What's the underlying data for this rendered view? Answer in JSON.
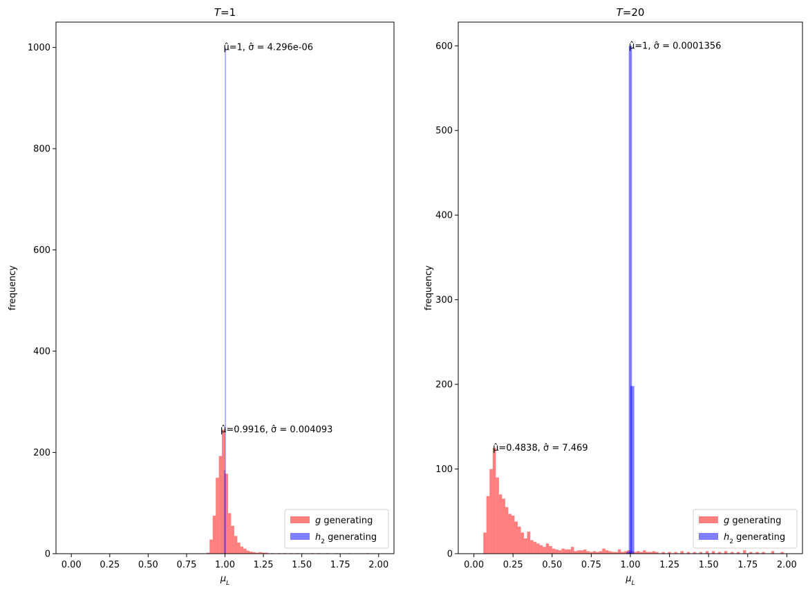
{
  "chart_data": [
    {
      "type": "bar",
      "title": "T=1",
      "xlabel": "μL",
      "ylabel": "frequency",
      "xlim": [
        -0.1,
        2.1
      ],
      "ylim": [
        0,
        1050
      ],
      "xticks": [
        0.0,
        0.25,
        0.5,
        0.75,
        1.0,
        1.25,
        1.5,
        1.75,
        2.0
      ],
      "xtick_labels": [
        "0.00",
        "0.25",
        "0.50",
        "0.75",
        "1.00",
        "1.25",
        "1.50",
        "1.75",
        "2.00"
      ],
      "yticks": [
        0,
        200,
        400,
        600,
        800,
        1000
      ],
      "ytick_labels": [
        "0",
        "200",
        "400",
        "600",
        "800",
        "1000"
      ],
      "legend": {
        "placement": "lower-right",
        "entries": [
          "g generating",
          "h2 generating"
        ]
      },
      "series": [
        {
          "name": "g generating",
          "color": "#ff0000",
          "opacity": 0.5,
          "bin_width": 0.02,
          "bins": [
            [
              0.88,
              2
            ],
            [
              0.9,
              28
            ],
            [
              0.92,
              75
            ],
            [
              0.94,
              150
            ],
            [
              0.96,
              193
            ],
            [
              0.98,
              245
            ],
            [
              1.0,
              158
            ],
            [
              1.02,
              80
            ],
            [
              1.04,
              55
            ],
            [
              1.06,
              35
            ],
            [
              1.08,
              22
            ],
            [
              1.1,
              14
            ],
            [
              1.12,
              10
            ],
            [
              1.14,
              6
            ],
            [
              1.16,
              4
            ],
            [
              1.18,
              3
            ],
            [
              1.2,
              2
            ],
            [
              1.22,
              3
            ],
            [
              1.24,
              2
            ],
            [
              1.26,
              2
            ],
            [
              1.3,
              1
            ],
            [
              1.34,
              1
            ],
            [
              1.38,
              1
            ],
            [
              1.42,
              1
            ],
            [
              1.46,
              1
            ],
            [
              1.5,
              1
            ],
            [
              1.56,
              1
            ],
            [
              1.6,
              1
            ],
            [
              1.66,
              1
            ],
            [
              1.72,
              1
            ],
            [
              1.8,
              1
            ],
            [
              1.92,
              1
            ]
          ]
        },
        {
          "name": "h2 generating",
          "color": "#0000ff",
          "opacity": 0.5,
          "bin_width": 0.005,
          "bins": [
            [
              0.995,
              165
            ],
            [
              1.0,
              1000
            ]
          ]
        }
      ],
      "annotations": [
        {
          "text": "μ̂=1, σ̂ = 4.296e-06",
          "x": 1.0,
          "y": 1000
        },
        {
          "text": "μ̂=0.9916, σ̂ = 0.004093",
          "x": 0.98,
          "y": 245
        }
      ]
    },
    {
      "type": "bar",
      "title": "T=20",
      "xlabel": "μL",
      "ylabel": "frequency",
      "xlim": [
        -0.1,
        2.1
      ],
      "ylim": [
        0,
        628
      ],
      "xticks": [
        0.0,
        0.25,
        0.5,
        0.75,
        1.0,
        1.25,
        1.5,
        1.75,
        2.0
      ],
      "xtick_labels": [
        "0.00",
        "0.25",
        "0.50",
        "0.75",
        "1.00",
        "1.25",
        "1.50",
        "1.75",
        "2.00"
      ],
      "yticks": [
        0,
        100,
        200,
        300,
        400,
        500,
        600
      ],
      "ytick_labels": [
        "0",
        "100",
        "200",
        "300",
        "400",
        "500",
        "600"
      ],
      "legend": {
        "placement": "lower-right",
        "entries": [
          "g generating",
          "h2 generating"
        ]
      },
      "series": [
        {
          "name": "g generating",
          "color": "#ff0000",
          "opacity": 0.5,
          "bin_width": 0.02,
          "bins": [
            [
              0.06,
              25
            ],
            [
              0.08,
              68
            ],
            [
              0.1,
              100
            ],
            [
              0.12,
              125
            ],
            [
              0.14,
              90
            ],
            [
              0.16,
              70
            ],
            [
              0.18,
              65
            ],
            [
              0.2,
              55
            ],
            [
              0.22,
              47
            ],
            [
              0.24,
              45
            ],
            [
              0.26,
              38
            ],
            [
              0.28,
              32
            ],
            [
              0.3,
              25
            ],
            [
              0.32,
              18
            ],
            [
              0.34,
              26
            ],
            [
              0.36,
              16
            ],
            [
              0.38,
              14
            ],
            [
              0.4,
              12
            ],
            [
              0.42,
              10
            ],
            [
              0.44,
              8
            ],
            [
              0.46,
              12
            ],
            [
              0.48,
              9
            ],
            [
              0.5,
              6
            ],
            [
              0.52,
              5
            ],
            [
              0.54,
              4
            ],
            [
              0.56,
              6
            ],
            [
              0.58,
              5
            ],
            [
              0.6,
              5
            ],
            [
              0.62,
              8
            ],
            [
              0.64,
              3
            ],
            [
              0.66,
              4
            ],
            [
              0.68,
              4
            ],
            [
              0.7,
              5
            ],
            [
              0.72,
              3
            ],
            [
              0.74,
              2
            ],
            [
              0.76,
              3
            ],
            [
              0.78,
              2
            ],
            [
              0.8,
              3
            ],
            [
              0.82,
              6
            ],
            [
              0.84,
              4
            ],
            [
              0.86,
              3
            ],
            [
              0.88,
              2
            ],
            [
              0.9,
              2
            ],
            [
              0.92,
              5
            ],
            [
              0.94,
              2
            ],
            [
              0.96,
              3
            ],
            [
              0.98,
              4
            ],
            [
              1.0,
              3
            ],
            [
              1.02,
              2
            ],
            [
              1.04,
              3
            ],
            [
              1.06,
              2
            ],
            [
              1.08,
              4
            ],
            [
              1.1,
              2
            ],
            [
              1.12,
              2
            ],
            [
              1.14,
              3
            ],
            [
              1.16,
              2
            ],
            [
              1.2,
              2
            ],
            [
              1.24,
              2
            ],
            [
              1.28,
              2
            ],
            [
              1.32,
              3
            ],
            [
              1.36,
              2
            ],
            [
              1.4,
              2
            ],
            [
              1.44,
              2
            ],
            [
              1.48,
              3
            ],
            [
              1.52,
              3
            ],
            [
              1.56,
              2
            ],
            [
              1.6,
              3
            ],
            [
              1.64,
              2
            ],
            [
              1.68,
              2
            ],
            [
              1.72,
              4
            ],
            [
              1.76,
              2
            ],
            [
              1.8,
              2
            ],
            [
              1.84,
              2
            ],
            [
              1.9,
              3
            ],
            [
              1.96,
              2
            ]
          ]
        },
        {
          "name": "h2 generating",
          "color": "#0000ff",
          "opacity": 0.5,
          "bin_width": 0.025,
          "bins": [
            [
              0.975,
              2
            ],
            [
              1.0,
              198
            ]
          ]
        },
        {
          "name": "h2 generating peak",
          "color": "#0000ff",
          "opacity": 0.5,
          "bin_width": 0.02,
          "bins": [
            [
              0.99,
              600
            ]
          ]
        }
      ],
      "annotations": [
        {
          "text": "μ̂=1, σ̂ = 0.0001356",
          "x": 1.0,
          "y": 600
        },
        {
          "text": "μ̂=0.4838, σ̂ = 7.469",
          "x": 0.13,
          "y": 125
        }
      ]
    }
  ]
}
